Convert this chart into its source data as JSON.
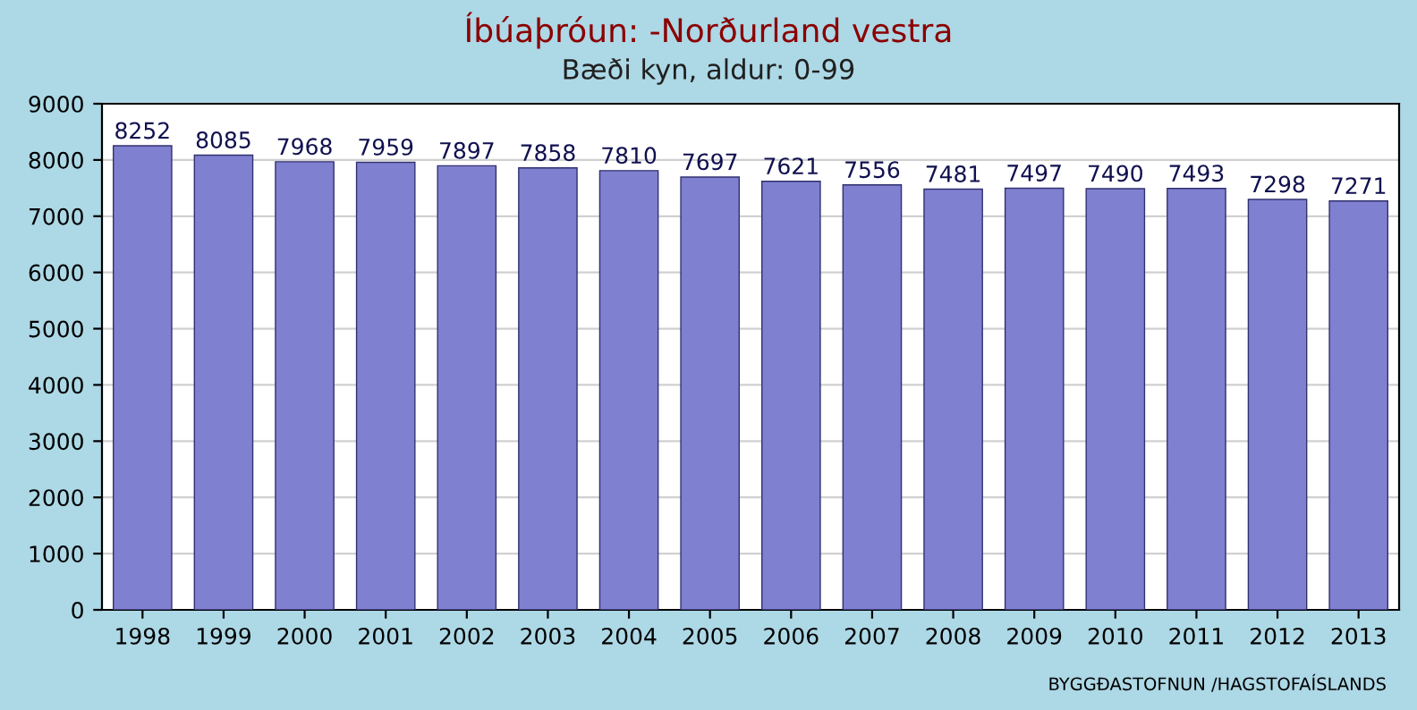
{
  "chart_data": {
    "type": "bar",
    "title": "Íbúaþróun: -Norðurland vestra",
    "subtitle": "Bæði kyn, aldur: 0-99",
    "categories": [
      "1998",
      "1999",
      "2000",
      "2001",
      "2002",
      "2003",
      "2004",
      "2005",
      "2006",
      "2007",
      "2008",
      "2009",
      "2010",
      "2011",
      "2012",
      "2013"
    ],
    "values": [
      8252,
      8085,
      7968,
      7959,
      7897,
      7858,
      7810,
      7697,
      7621,
      7556,
      7481,
      7497,
      7490,
      7493,
      7298,
      7271
    ],
    "color": "#8080d0",
    "ylim": [
      0,
      9000
    ],
    "yticks": [
      0,
      1000,
      2000,
      3000,
      4000,
      5000,
      6000,
      7000,
      8000,
      9000
    ],
    "grid": "y",
    "data_labels": true,
    "legend": false,
    "annotations": [
      "BYGGÐASTOFNUN /HAGSTOFAÍSLANDS"
    ]
  }
}
